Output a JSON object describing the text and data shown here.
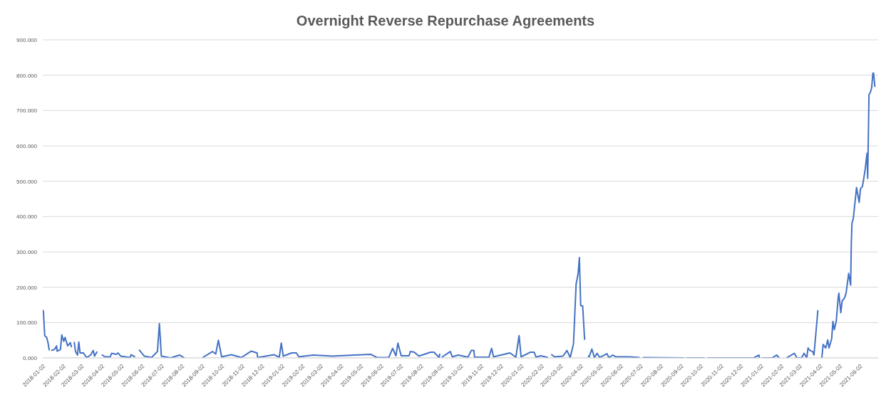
{
  "chart_data": {
    "type": "line",
    "title": "Overnight Reverse Repurchase Agreements",
    "x": [
      "2018-01-02",
      "2018-01-03",
      "2018-01-05",
      "2018-01-08",
      "2018-01-10",
      "2018-01-12",
      "2018-01-13",
      "2018-01-15",
      "2018-01-20",
      "2018-01-23",
      "2018-01-24",
      "2018-01-29",
      "2018-01-31",
      "2018-02-03",
      "2018-02-05",
      "2018-02-09",
      "2018-02-13",
      "2018-02-15",
      "2018-02-17",
      "2018-02-19",
      "2018-02-21",
      "2018-02-24",
      "2018-02-26",
      "2018-02-28",
      "2018-03-05",
      "2018-03-10",
      "2018-03-16",
      "2018-03-20",
      "2018-03-22",
      "2018-03-26",
      "2018-03-29",
      "2018-04-02",
      "2018-04-07",
      "2018-04-15",
      "2018-04-17",
      "2018-04-24",
      "2018-04-27",
      "2018-05-01",
      "2018-05-15",
      "2018-05-17",
      "2018-05-23",
      "2018-05-26",
      "2018-05-29",
      "2018-06-02",
      "2018-06-06",
      "2018-06-17",
      "2018-06-26",
      "2018-06-29",
      "2018-07-02",
      "2018-07-16",
      "2018-07-30",
      "2018-08-06",
      "2018-08-20",
      "2018-09-03",
      "2018-09-18",
      "2018-09-23",
      "2018-09-27",
      "2018-10-02",
      "2018-10-17",
      "2018-11-01",
      "2018-11-16",
      "2018-11-25",
      "2018-11-26",
      "2018-12-21",
      "2018-12-29",
      "2019-01-01",
      "2019-01-04",
      "2019-01-17",
      "2019-01-24",
      "2019-01-28",
      "2019-02-19",
      "2019-03-20",
      "2019-04-23",
      "2019-05-18",
      "2019-05-27",
      "2019-06-14",
      "2019-06-20",
      "2019-06-25",
      "2019-06-28",
      "2019-07-03",
      "2019-07-15",
      "2019-07-17",
      "2019-07-23",
      "2019-07-30",
      "2019-08-17",
      "2019-08-22",
      "2019-08-30",
      "2019-08-31",
      "2019-09-01",
      "2019-09-03",
      "2019-09-16",
      "2019-09-19",
      "2019-09-28",
      "2019-10-13",
      "2019-10-18",
      "2019-10-22",
      "2019-10-23",
      "2019-11-14",
      "2019-11-18",
      "2019-11-21",
      "2019-12-16",
      "2019-12-25",
      "2019-12-30",
      "2020-01-02",
      "2020-01-16",
      "2020-01-22",
      "2020-01-25",
      "2020-02-01",
      "2020-02-12",
      "2020-02-15",
      "2020-02-17",
      "2020-02-22",
      "2020-03-06",
      "2020-03-12",
      "2020-03-17",
      "2020-03-22",
      "2020-03-26",
      "2020-03-29",
      "2020-03-31",
      "2020-04-02",
      "2020-04-05",
      "2020-04-08",
      "2020-04-10",
      "2020-04-13",
      "2020-04-15",
      "2020-04-19",
      "2020-04-23",
      "2020-04-27",
      "2020-05-01",
      "2020-05-12",
      "2020-05-15",
      "2020-05-21",
      "2020-05-26",
      "2020-06-16",
      "2020-07-01",
      "2020-07-03",
      "2020-07-06",
      "2020-09-07",
      "2020-09-08",
      "2020-09-10",
      "2020-10-08",
      "2020-10-10",
      "2020-10-12",
      "2020-12-22",
      "2020-12-30",
      "2020-12-31",
      "2021-01-02",
      "2021-01-04",
      "2021-01-19",
      "2021-01-26",
      "2021-01-30",
      "2021-02-05",
      "2021-02-10",
      "2021-02-22",
      "2021-02-26",
      "2021-03-05",
      "2021-03-09",
      "2021-03-13",
      "2021-03-15",
      "2021-03-18",
      "2021-03-22",
      "2021-03-24",
      "2021-03-30",
      "2021-04-02",
      "2021-04-05",
      "2021-04-07",
      "2021-04-11",
      "2021-04-14",
      "2021-04-16",
      "2021-04-20",
      "2021-04-22",
      "2021-04-24",
      "2021-04-27",
      "2021-04-30",
      "2021-05-01",
      "2021-05-04",
      "2021-05-06",
      "2021-05-10",
      "2021-05-12",
      "2021-05-16",
      "2021-05-19",
      "2021-05-20",
      "2021-05-21",
      "2021-05-23",
      "2021-05-28",
      "2021-06-01",
      "2021-06-03",
      "2021-06-06",
      "2021-06-10",
      "2021-06-13",
      "2021-06-14",
      "2021-06-16",
      "2021-06-18",
      "2021-06-20",
      "2021-06-22",
      "2021-06-23",
      "2021-06-25"
    ],
    "series": [
      {
        "color": "#4472c4",
        "values": [
          136,
          131,
          63,
          58,
          43,
          21,
          null,
          21,
          24,
          34,
          19,
          24,
          65,
          47,
          58,
          34,
          43,
          30,
          null,
          45,
          18,
          8,
          45,
          14,
          14,
          1,
          8,
          21,
          5,
          18,
          null,
          9,
          3,
          3,
          13,
          10,
          14,
          5,
          1,
          9,
          3,
          null,
          23,
          14,
          5,
          1,
          18,
          97,
          5,
          0,
          8,
          0,
          null,
          1,
          18,
          11,
          50,
          3,
          9,
          1,
          19,
          14,
          1,
          9,
          2,
          42,
          5,
          14,
          14,
          3,
          8,
          5,
          8,
          10,
          1,
          1,
          27,
          6,
          42,
          6,
          6,
          18,
          16,
          5,
          16,
          16,
          1,
          12,
          null,
          2,
          18,
          3,
          8,
          2,
          21,
          21,
          2,
          2,
          27,
          3,
          14,
          2,
          63,
          3,
          16,
          16,
          2,
          6,
          1,
          null,
          10,
          3,
          5,
          21,
          1,
          40,
          209,
          238,
          284,
          148,
          147,
          51,
          null,
          6,
          3,
          25,
          1,
          13,
          1,
          12,
          1,
          8,
          3,
          3,
          1,
          null,
          1,
          0,
          null,
          0,
          0,
          null,
          0,
          0,
          8,
          0,
          null,
          0,
          0,
          8,
          0,
          null,
          0,
          13,
          0,
          0,
          13,
          0,
          28,
          21,
          18,
          8,
          135,
          null,
          0,
          38,
          28,
          51,
          28,
          54,
          103,
          80,
          103,
          171,
          183,
          128,
          161,
          171,
          183,
          239,
          206,
          323,
          381,
          394,
          482,
          440,
          479,
          485,
          531,
          579,
          508,
          745,
          751,
          764,
          806,
          806,
          767
        ]
      }
    ],
    "xlim": [
      "2018-01-02",
      "2021-06-30"
    ],
    "xticks": [
      "2018-01-02",
      "2018-02-02",
      "2018-03-02",
      "2018-04-02",
      "2018-05-02",
      "2018-06-02",
      "2018-07-02",
      "2018-08-02",
      "2018-09-02",
      "2018-10-02",
      "2018-11-02",
      "2018-12-02",
      "2019-01-02",
      "2019-02-02",
      "2019-03-02",
      "2019-04-02",
      "2019-05-02",
      "2019-06-02",
      "2019-07-02",
      "2019-08-02",
      "2019-09-02",
      "2019-10-02",
      "2019-11-02",
      "2019-12-02",
      "2020-01-02",
      "2020-02-02",
      "2020-03-02",
      "2020-04-02",
      "2020-05-02",
      "2020-06-02",
      "2020-07-02",
      "2020-08-02",
      "2020-09-02",
      "2020-10-02",
      "2020-11-02",
      "2020-12-02",
      "2021-01-02",
      "2021-02-02",
      "2021-03-02",
      "2021-04-02",
      "2021-05-02",
      "2021-06-02"
    ],
    "ylim": [
      0,
      900
    ],
    "yticks": [
      {
        "value": 0,
        "label": "0.000"
      },
      {
        "value": 100,
        "label": "100.000"
      },
      {
        "value": 200,
        "label": "200.000"
      },
      {
        "value": 300,
        "label": "300.000"
      },
      {
        "value": 400,
        "label": "400.000"
      },
      {
        "value": 500,
        "label": "500.000"
      },
      {
        "value": 600,
        "label": "600.000"
      },
      {
        "value": 700,
        "label": "700.000"
      },
      {
        "value": 800,
        "label": "800.000"
      },
      {
        "value": 900,
        "label": "900.000"
      }
    ],
    "grid": "y",
    "legend": false,
    "marker": "none",
    "line_style": "solid"
  }
}
